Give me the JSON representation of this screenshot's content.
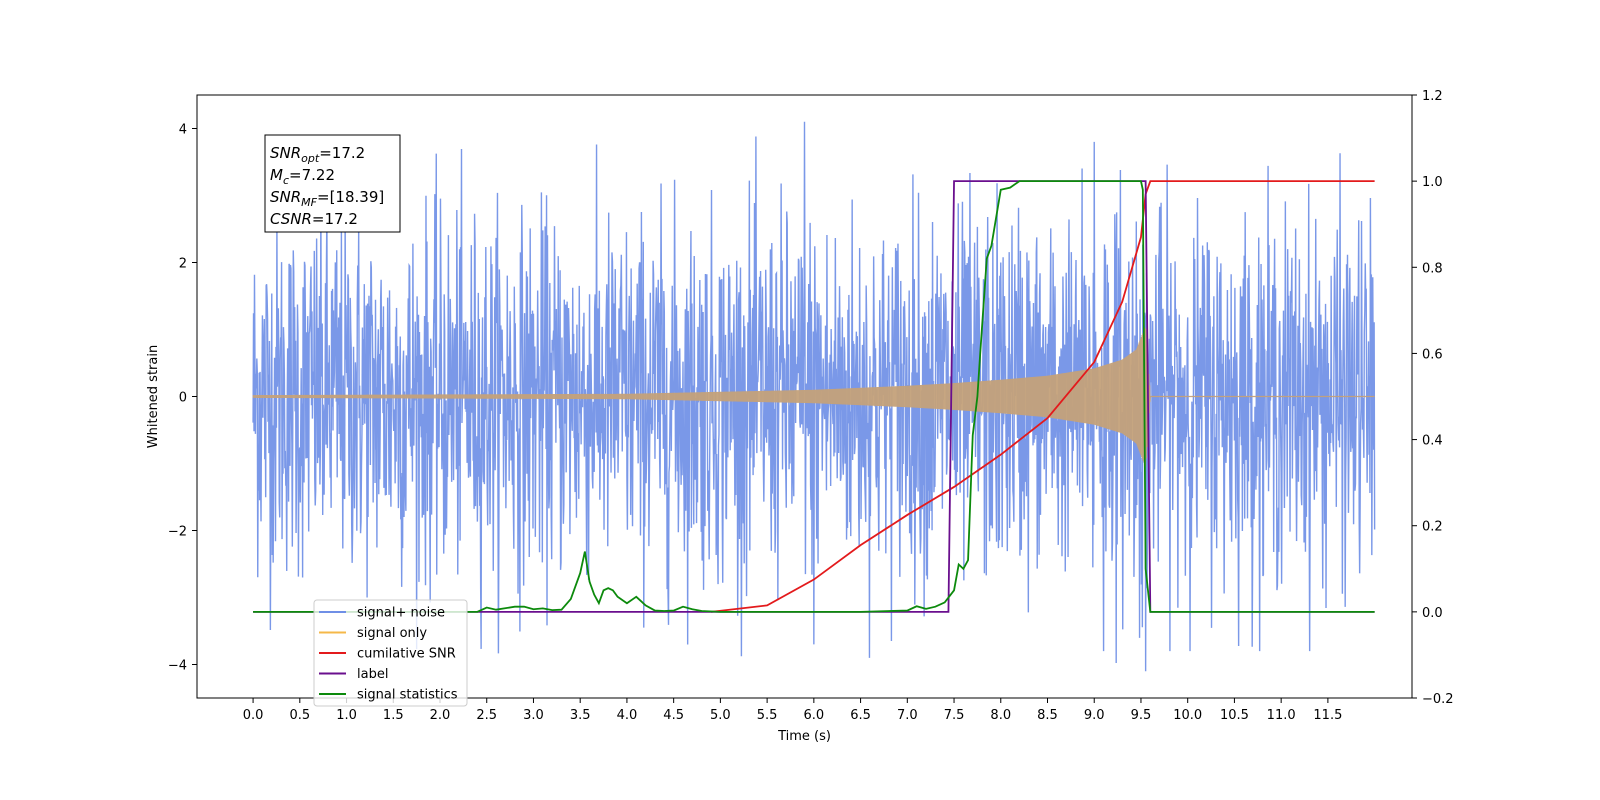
{
  "chart_data": {
    "type": "line",
    "title": "",
    "xlabel": "Time (s)",
    "ylabel_left": "Whitened strain",
    "ylabel_right": "",
    "xlim": [
      -0.6,
      12.4
    ],
    "ylim_left": [
      -4.5,
      4.5
    ],
    "ylim_right": [
      -0.2,
      1.2
    ],
    "x_ticks": [
      0.0,
      0.5,
      1.0,
      1.5,
      2.0,
      2.5,
      3.0,
      3.5,
      4.0,
      4.5,
      5.0,
      5.5,
      6.0,
      6.5,
      7.0,
      7.5,
      8.0,
      8.5,
      9.0,
      9.5,
      10.0,
      10.5,
      11.0,
      11.5
    ],
    "x_tick_labels": [
      "0.0",
      "0.5",
      "1.0",
      "1.5",
      "2.0",
      "2.5",
      "3.0",
      "3.5",
      "4.0",
      "4.5",
      "5.0",
      "5.5",
      "6.0",
      "6.5",
      "7.0",
      "7.5",
      "8.0",
      "8.5",
      "9.0",
      "9.5",
      "10.0",
      "10.5",
      "11.0",
      "11.5"
    ],
    "y_left_ticks": [
      -4,
      -2,
      0,
      2,
      4
    ],
    "y_left_tick_labels": [
      "−4",
      "−2",
      "0",
      "2",
      "4"
    ],
    "y_right_ticks": [
      -0.2,
      0.0,
      0.2,
      0.4,
      0.6,
      0.8,
      1.0,
      1.2
    ],
    "y_right_tick_labels": [
      "−0.2",
      "0.0",
      "0.2",
      "0.4",
      "0.6",
      "0.8",
      "1.0",
      "1.2"
    ],
    "grid": false,
    "legend_position": "lower-left",
    "annotation": {
      "lines": [
        {
          "sym": "SNR",
          "sub": "opt",
          "value": "=17.2"
        },
        {
          "sym": "M",
          "sub": "c",
          "value": "=7.22"
        },
        {
          "sym": "SNR",
          "sub": "MF",
          "value": "=[18.39]"
        },
        {
          "sym": "CSNR",
          "sub": "",
          "value": "=17.2"
        }
      ]
    },
    "noise_band": {
      "x_start": 0.0,
      "x_end": 12.0,
      "typical_amplitude": 2.4,
      "peak_amplitude": 4.1,
      "note_peaks": [
        [
          5.9,
          4.1
        ],
        [
          9.0,
          3.8
        ],
        [
          9.55,
          -4.1
        ],
        [
          6.0,
          -3.7
        ],
        [
          9.1,
          -3.8
        ]
      ]
    },
    "series": [
      {
        "name": "signal+ noise",
        "color": "#6f8fe6",
        "axis": "left",
        "kind": "noise"
      },
      {
        "name": "signal only",
        "color": "#f5b849",
        "axis": "left",
        "kind": "chirp",
        "envelope": {
          "x": [
            0.0,
            4.0,
            5.0,
            6.0,
            7.0,
            7.5,
            8.0,
            8.5,
            9.0,
            9.3,
            9.45,
            9.55,
            9.6,
            12.0
          ],
          "amp": [
            0.02,
            0.04,
            0.07,
            0.1,
            0.16,
            0.2,
            0.25,
            0.31,
            0.42,
            0.55,
            0.7,
            1.05,
            0.0,
            0.0
          ]
        }
      },
      {
        "name": "cumilative SNR",
        "color": "#e31a1c",
        "axis": "right",
        "kind": "line",
        "x": [
          4.9,
          5.5,
          6.0,
          6.5,
          7.0,
          7.5,
          8.0,
          8.5,
          9.0,
          9.3,
          9.5,
          9.55,
          9.6,
          12.0
        ],
        "y": [
          0.0,
          0.015,
          0.075,
          0.155,
          0.225,
          0.29,
          0.365,
          0.45,
          0.58,
          0.72,
          0.87,
          0.97,
          1.0,
          1.0
        ]
      },
      {
        "name": "label",
        "color": "#6a0f8e",
        "axis": "right",
        "kind": "line",
        "x": [
          0.0,
          7.44,
          7.5,
          9.55,
          9.6,
          12.0
        ],
        "y": [
          0.0,
          0.0,
          1.0,
          1.0,
          0.0,
          0.0
        ]
      },
      {
        "name": "signal statistics",
        "color": "#0c8a0c",
        "axis": "right",
        "kind": "line",
        "x": [
          0.0,
          2.4,
          2.5,
          2.6,
          2.8,
          2.9,
          3.0,
          3.1,
          3.2,
          3.3,
          3.4,
          3.5,
          3.55,
          3.6,
          3.65,
          3.7,
          3.75,
          3.8,
          3.85,
          3.9,
          4.0,
          4.1,
          4.15,
          4.2,
          4.3,
          4.4,
          4.5,
          4.6,
          4.7,
          4.8,
          5.0,
          5.5,
          6.0,
          6.5,
          7.0,
          7.1,
          7.2,
          7.3,
          7.4,
          7.5,
          7.55,
          7.6,
          7.65,
          7.7,
          7.75,
          7.78,
          7.85,
          7.9,
          8.0,
          8.1,
          8.2,
          8.3,
          8.5,
          9.0,
          9.5,
          9.52,
          9.55,
          9.6,
          9.65,
          12.0
        ],
        "y": [
          0.0,
          0.0,
          0.01,
          0.005,
          0.012,
          0.012,
          0.006,
          0.008,
          0.004,
          0.005,
          0.03,
          0.09,
          0.14,
          0.07,
          0.04,
          0.02,
          0.05,
          0.055,
          0.05,
          0.035,
          0.02,
          0.035,
          0.025,
          0.015,
          0.003,
          0.002,
          0.003,
          0.012,
          0.006,
          0.002,
          0.0,
          0.0,
          0.0,
          0.0,
          0.003,
          0.013,
          0.007,
          0.012,
          0.022,
          0.05,
          0.11,
          0.1,
          0.12,
          0.41,
          0.5,
          0.6,
          0.82,
          0.85,
          0.98,
          0.985,
          1.0,
          1.0,
          1.0,
          1.0,
          1.0,
          0.98,
          0.1,
          0.0,
          0.0,
          0.0
        ]
      }
    ],
    "legend_entries": [
      {
        "label": "signal+ noise",
        "color": "#6f8fe6"
      },
      {
        "label": "signal only",
        "color": "#f5b849"
      },
      {
        "label": "cumilative SNR",
        "color": "#e31a1c"
      },
      {
        "label": "label",
        "color": "#6a0f8e"
      },
      {
        "label": "signal statistics",
        "color": "#0c8a0c"
      }
    ]
  }
}
